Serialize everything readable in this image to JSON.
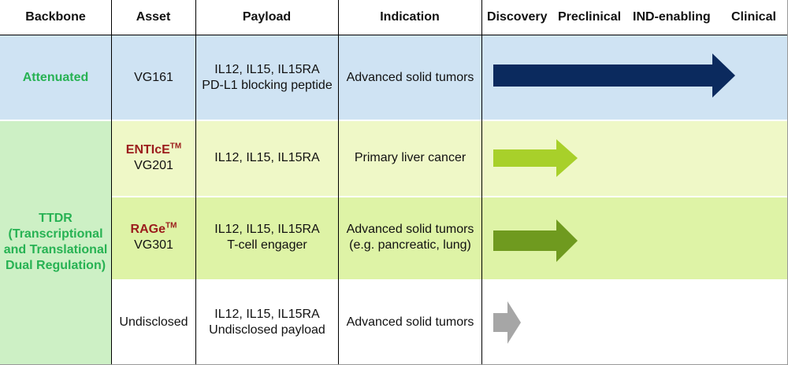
{
  "header": {
    "backbone": "Backbone",
    "asset": "Asset",
    "payload": "Payload",
    "indication": "Indication",
    "stages": [
      "Discovery",
      "Preclinical",
      "IND-enabling",
      "Clinical"
    ]
  },
  "rows": [
    {
      "backbone": "Attenuated",
      "asset": "VG161",
      "payload_lines": [
        "IL12, IL15, IL15RA",
        "PD-L1 blocking peptide"
      ],
      "indication_lines": [
        "Advanced solid tumors"
      ],
      "arrow_color": "#0b2a5e",
      "progress_stage": "Clinical"
    },
    {
      "brand": "ENTIcE",
      "brand_sup": "TM",
      "asset": "VG201",
      "payload_lines": [
        "IL12, IL15, IL15RA"
      ],
      "indication_lines": [
        "Primary liver cancer"
      ],
      "arrow_color": "#a8d02a",
      "progress_stage": "Discovery"
    },
    {
      "brand": "RAGe",
      "brand_sup": "TM",
      "asset": "VG301",
      "payload_lines": [
        "IL12, IL15, IL15RA",
        "T-cell engager"
      ],
      "indication_lines": [
        "Advanced solid tumors",
        "(e.g. pancreatic, lung)"
      ],
      "arrow_color": "#6f9a1f",
      "progress_stage": "Discovery"
    },
    {
      "asset": "Undisclosed",
      "payload_lines": [
        "IL12, IL15, IL15RA",
        "Undisclosed payload"
      ],
      "indication_lines": [
        "Advanced solid tumors"
      ],
      "arrow_color": "#a6a6a6",
      "progress_stage": "Discovery"
    }
  ],
  "ttdr_lines": [
    "TTDR",
    "(Transcriptional",
    "and Translational",
    "Dual Regulation)"
  ],
  "colors": {
    "row1_bg": "#cfe3f3",
    "row2_bg": "#eff8c7",
    "row3_bg": "#def3a6",
    "row4_bg": "#ffffff",
    "ttdr_bg": "#cdf0c5",
    "backbone_text": "#27b253",
    "brand_text": "#9b1c1c"
  }
}
